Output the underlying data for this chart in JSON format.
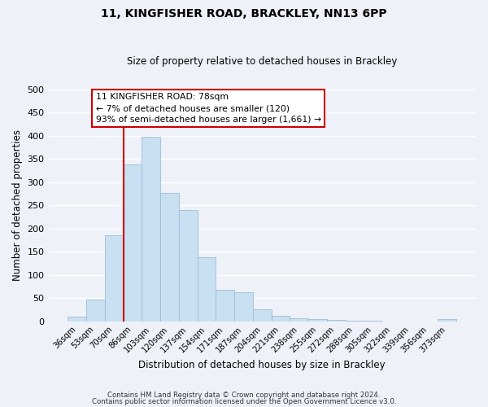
{
  "title": "11, KINGFISHER ROAD, BRACKLEY, NN13 6PP",
  "subtitle": "Size of property relative to detached houses in Brackley",
  "xlabel": "Distribution of detached houses by size in Brackley",
  "ylabel": "Number of detached properties",
  "bar_color": "#c9dff2",
  "bar_edge_color": "#9bbcd8",
  "categories": [
    "36sqm",
    "53sqm",
    "70sqm",
    "86sqm",
    "103sqm",
    "120sqm",
    "137sqm",
    "154sqm",
    "171sqm",
    "187sqm",
    "204sqm",
    "221sqm",
    "238sqm",
    "255sqm",
    "272sqm",
    "288sqm",
    "305sqm",
    "322sqm",
    "339sqm",
    "356sqm",
    "373sqm"
  ],
  "values": [
    10,
    47,
    185,
    338,
    398,
    277,
    240,
    137,
    68,
    62,
    26,
    11,
    6,
    4,
    2,
    1,
    1,
    0,
    0,
    0,
    4
  ],
  "ylim": [
    0,
    500
  ],
  "yticks": [
    0,
    50,
    100,
    150,
    200,
    250,
    300,
    350,
    400,
    450,
    500
  ],
  "vline_x": 3,
  "vline_color": "#cc0000",
  "annotation_line1": "11 KINGFISHER ROAD: 78sqm",
  "annotation_line2": "← 7% of detached houses are smaller (120)",
  "annotation_line3": "93% of semi-detached houses are larger (1,661) →",
  "annotation_box_color": "#ffffff",
  "annotation_box_edge": "#cc0000",
  "footnote1": "Contains HM Land Registry data © Crown copyright and database right 2024.",
  "footnote2": "Contains public sector information licensed under the Open Government Licence v3.0.",
  "background_color": "#eef2f8",
  "grid_color": "#ffffff",
  "figsize": [
    6.0,
    5.0
  ],
  "dpi": 100
}
